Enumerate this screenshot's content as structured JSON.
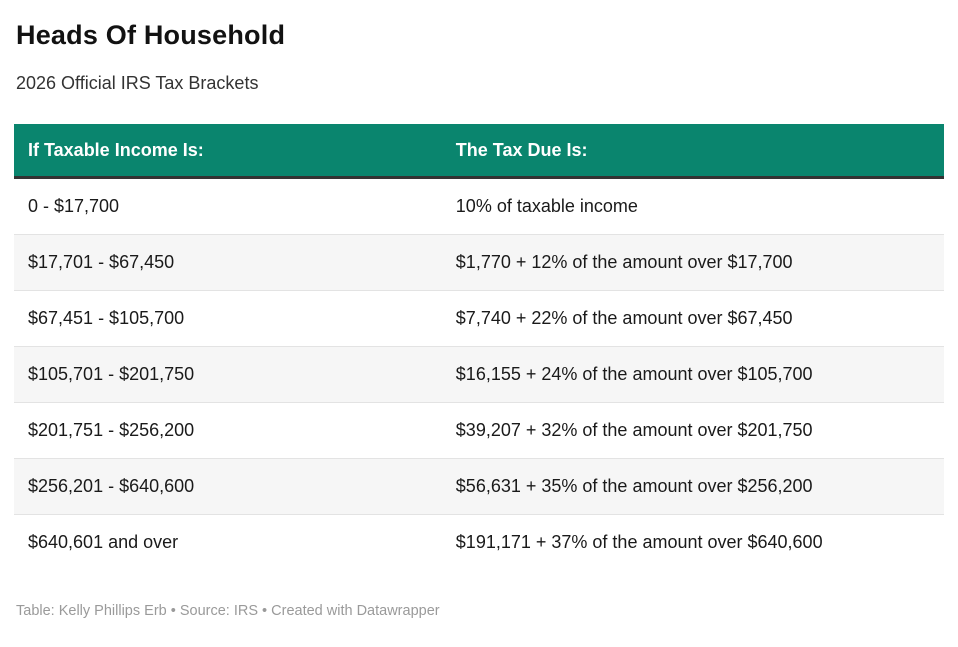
{
  "page": {
    "title": "Heads Of Household",
    "subtitle": "2026 Official IRS Tax Brackets"
  },
  "chart_data": {
    "type": "table",
    "title": "Heads Of Household",
    "subtitle": "2026 Official IRS Tax Brackets",
    "columns": [
      "If Taxable Income Is:",
      "The Tax Due Is:"
    ],
    "rows": [
      [
        "0 - $17,700",
        "10% of taxable income"
      ],
      [
        "$17,701 - $67,450",
        "$1,770 + 12% of the amount over $17,700"
      ],
      [
        "$67,451 - $105,700",
        "$7,740 + 22% of the amount over $67,450"
      ],
      [
        "$105,701 - $201,750",
        "$16,155 + 24% of the amount over $105,700"
      ],
      [
        "$201,751 - $256,200",
        "$39,207 + 32% of the amount over $201,750"
      ],
      [
        "$256,201 - $640,600",
        "$56,631 + 35% of the amount over $256,200"
      ],
      [
        "$640,601 and over",
        "$191,171 + 37% of the amount over $640,600"
      ]
    ],
    "layout_hints": {
      "alternating_rows": true,
      "header_style": "solid-fill"
    }
  },
  "footer": {
    "credit": "Table: Kelly Phillips Erb • Source: IRS • Created with Datawrapper"
  },
  "colors": {
    "header_bg": "#0a856e",
    "header_text": "#ffffff",
    "header_underline": "#333333",
    "row_alt_bg": "#f6f6f6",
    "row_divider": "#e3e3e3",
    "body_text": "#1a1a1a",
    "title_text": "#121212",
    "subtitle_text": "#333333",
    "footer_text": "#9a9a9a"
  }
}
